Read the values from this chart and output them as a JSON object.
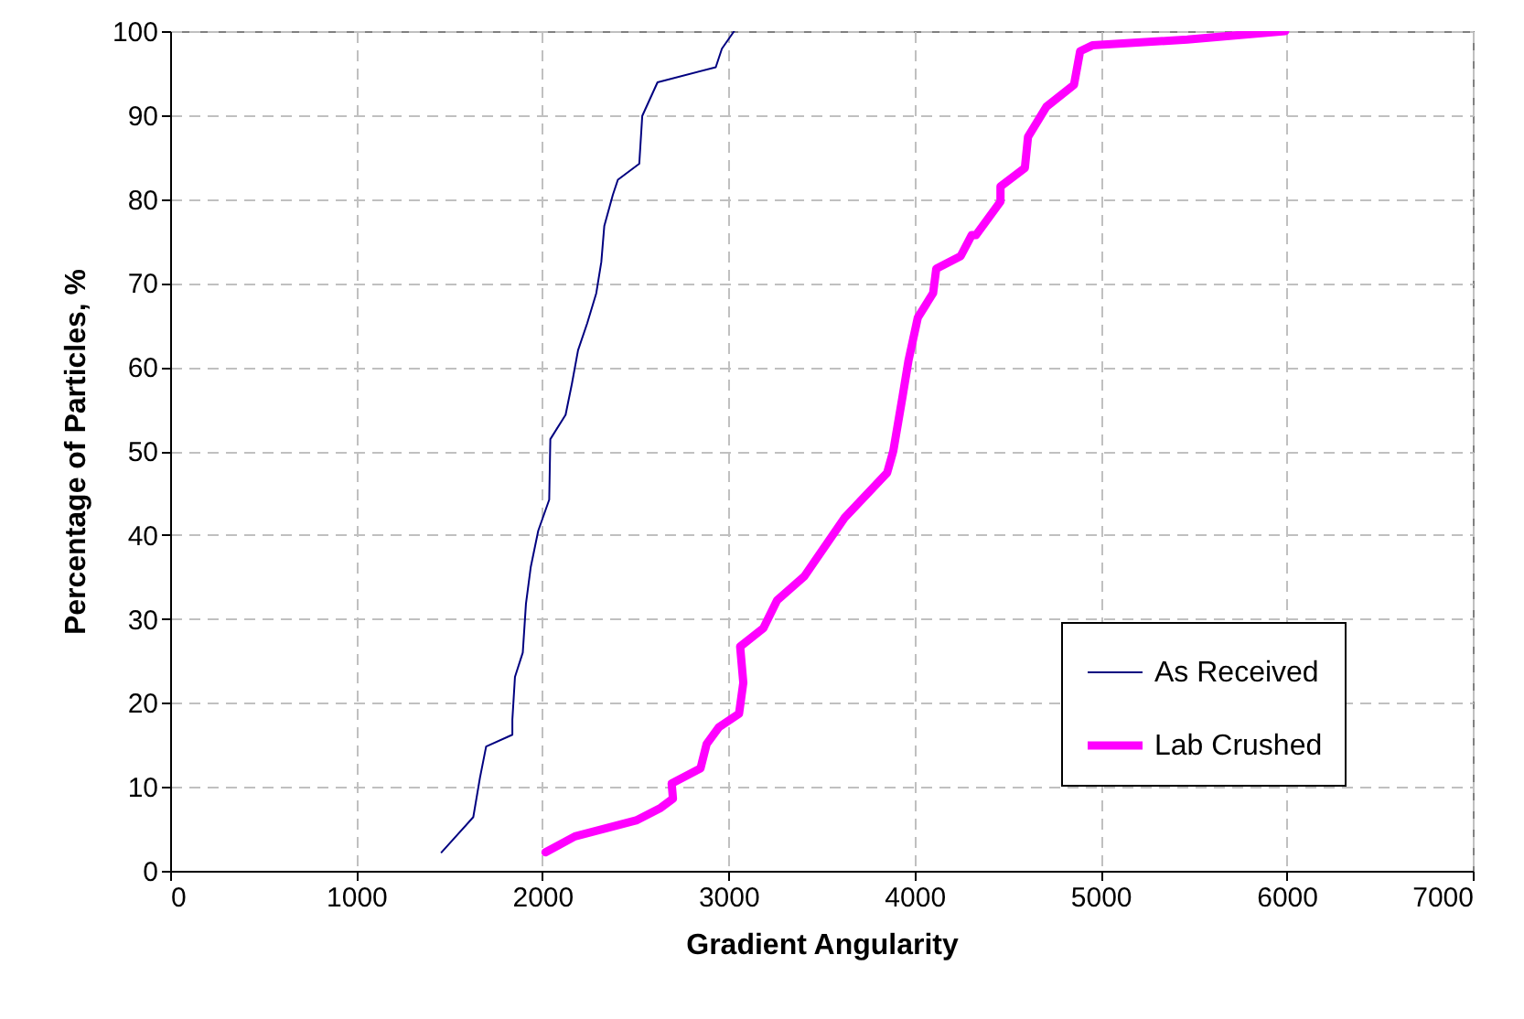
{
  "chart_data": {
    "type": "line",
    "xlabel": "Gradient Angularity",
    "ylabel": "Percentage of Particles, %",
    "xlim": [
      0,
      7000
    ],
    "xticks": [
      0,
      1000,
      2000,
      3000,
      4000,
      5000,
      6000,
      7000
    ],
    "ylim": [
      0,
      100
    ],
    "yticks": [
      0,
      10,
      20,
      30,
      40,
      50,
      60,
      70,
      80,
      90,
      100
    ],
    "grid": true,
    "legend": "bottom right",
    "line_style": "solid",
    "marker": "none",
    "series": [
      {
        "name": "As Received",
        "color": "#000080",
        "x": [
          1458,
          1629,
          1665,
          1698,
          1839,
          1839,
          1853,
          1895,
          1912,
          1938,
          1978,
          2037,
          2043,
          2125,
          2159,
          2192,
          2241,
          2290,
          2317,
          2333,
          2379,
          2406,
          2521,
          2537,
          2619,
          2932,
          2965,
          3031
        ],
        "values": [
          2.2,
          6.4,
          11.1,
          14.8,
          16.2,
          18,
          23.1,
          26,
          31.8,
          36.2,
          40.5,
          44.2,
          51.4,
          54.3,
          58,
          62,
          65.2,
          68.8,
          72.5,
          76.8,
          80.5,
          82.3,
          84.2,
          89.9,
          93.9,
          95.7,
          97.9,
          100
        ]
      },
      {
        "name": "Lab Crushed",
        "color": "#ff00ff",
        "x": [
          2017,
          2175,
          2504,
          2636,
          2702,
          2695,
          2850,
          2883,
          2949,
          3057,
          3080,
          3063,
          3188,
          3261,
          3409,
          3623,
          3853,
          3886,
          3936,
          3968,
          4018,
          4100,
          4117,
          4248,
          4307,
          4330,
          4462,
          4462,
          4593,
          4610,
          4709,
          4857,
          4890,
          4956,
          5466,
          5992
        ],
        "values": [
          2.2,
          4.1,
          6,
          7.5,
          8.6,
          10.4,
          12.2,
          15.1,
          17.1,
          18.7,
          22.4,
          26.7,
          28.9,
          32.2,
          35.1,
          42,
          47.4,
          50,
          56.5,
          60.8,
          65.9,
          68.8,
          71.7,
          73.2,
          75.7,
          75.7,
          79.7,
          81.5,
          83.7,
          87.4,
          91,
          93.6,
          97.6,
          98.3,
          99,
          100
        ]
      }
    ]
  }
}
